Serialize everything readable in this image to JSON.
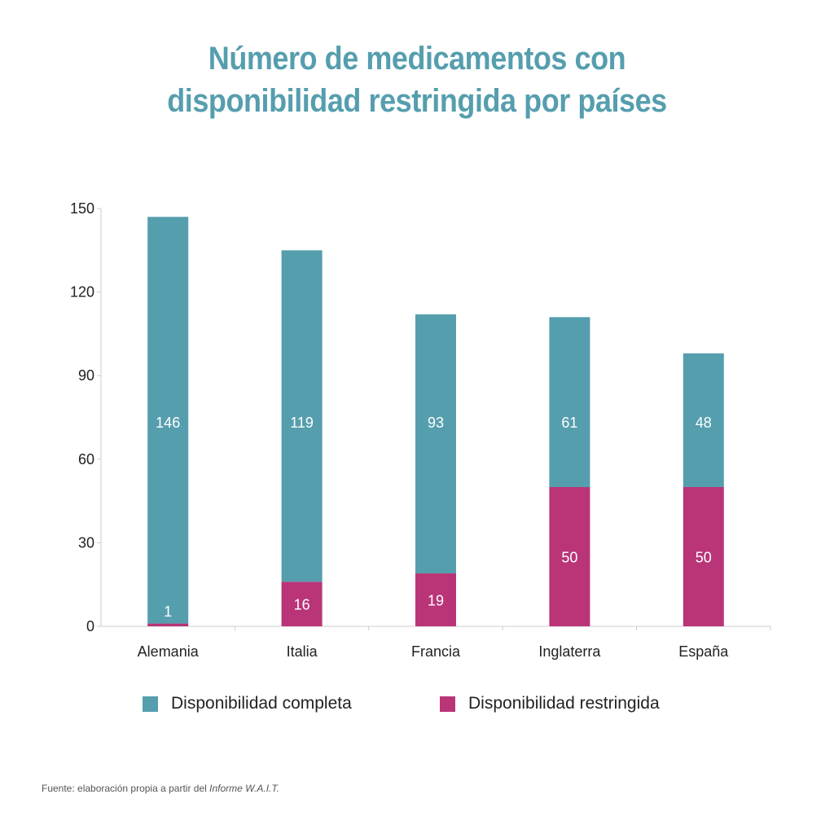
{
  "title_line1": "Número de medicamentos con",
  "title_line2": "disponibilidad restringida por países",
  "legend": {
    "completa": "Disponibilidad completa",
    "restringida": "Disponibilidad restringida"
  },
  "source": {
    "prefix": "Fuente: elaboración propia a partir del ",
    "italic": "Informe W.A.I.T."
  },
  "colors": {
    "title": "#559eae",
    "completa": "#559eae",
    "restringida": "#b93578",
    "axis": "#cccccc",
    "text": "#222222"
  },
  "chart_data": {
    "type": "bar",
    "stacked": true,
    "categories": [
      "Alemania",
      "Italia",
      "Francia",
      "Inglaterra",
      "España"
    ],
    "series": [
      {
        "name": "Disponibilidad restringida",
        "values": [
          1,
          16,
          19,
          50,
          50
        ]
      },
      {
        "name": "Disponibilidad completa",
        "values": [
          146,
          119,
          93,
          61,
          48
        ]
      }
    ],
    "yticks": [
      0,
      30,
      60,
      90,
      120,
      150
    ],
    "ylim": [
      0,
      150
    ],
    "grid": false,
    "legend_position": "bottom"
  }
}
